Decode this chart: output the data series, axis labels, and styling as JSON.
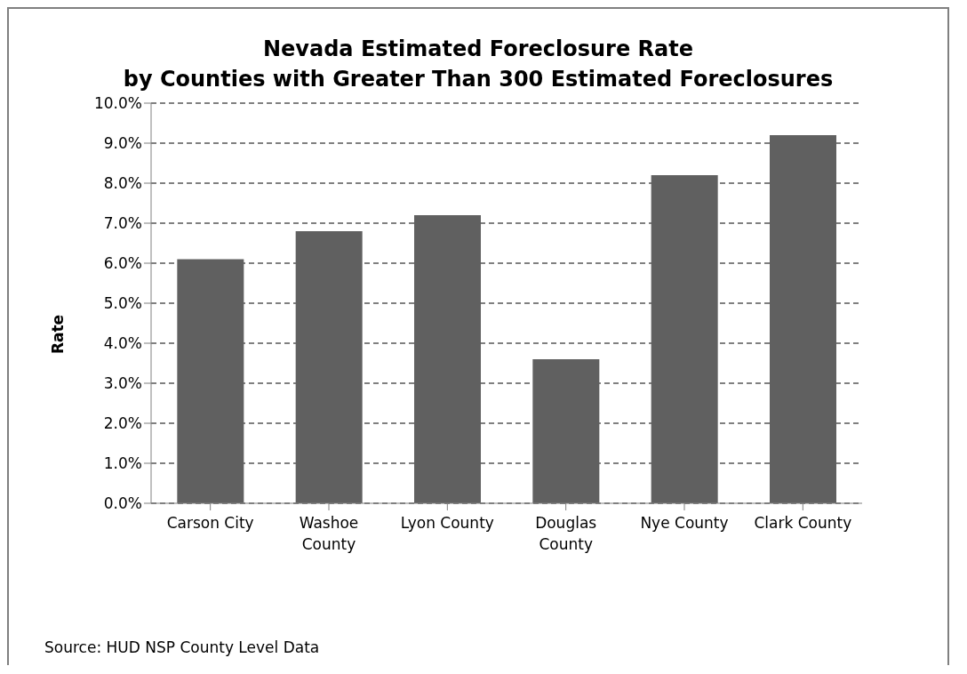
{
  "chart_data": {
    "type": "bar",
    "title": "Nevada Estimated Foreclosure Rate\nby Counties with Greater Than 300 Estimated Foreclosures",
    "ylabel": "Rate",
    "categories": [
      "Carson City",
      "Washoe County",
      "Lyon County",
      "Douglas County",
      "Nye County",
      "Clark County"
    ],
    "values": [
      6.1,
      6.8,
      7.2,
      3.6,
      8.2,
      9.2
    ],
    "color": "#606060",
    "ylim": [
      0,
      10
    ],
    "yticks": [
      {
        "value": 0,
        "label": "0.0%"
      },
      {
        "value": 1,
        "label": "1.0%"
      },
      {
        "value": 2,
        "label": "2.0%"
      },
      {
        "value": 3,
        "label": "3.0%"
      },
      {
        "value": 4,
        "label": "4.0%"
      },
      {
        "value": 5,
        "label": "5.0%"
      },
      {
        "value": 6,
        "label": "6.0%"
      },
      {
        "value": 7,
        "label": "7.0%"
      },
      {
        "value": 8,
        "label": "8.0%"
      },
      {
        "value": 9,
        "label": "9.0%"
      },
      {
        "value": 10,
        "label": "10.0%"
      }
    ],
    "grid": "y",
    "legend": false,
    "annotations": [
      "Source: HUD NSP County Level Data"
    ]
  }
}
